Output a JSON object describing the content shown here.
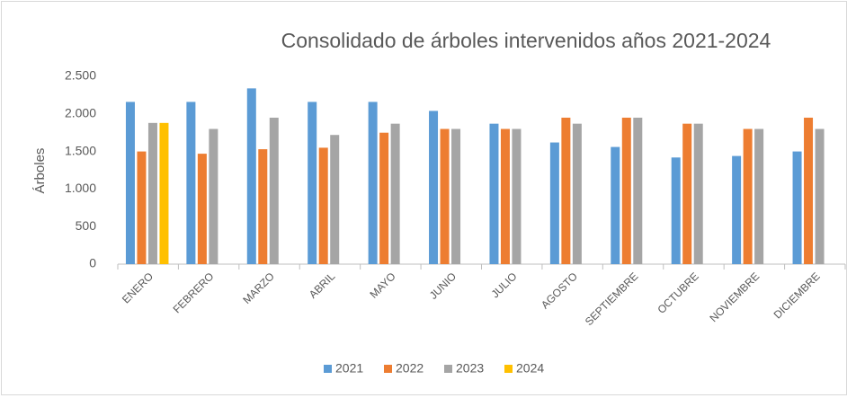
{
  "chart_data": {
    "type": "bar",
    "title": "Consolidado de árboles intervenidos años 2021-2024",
    "y_label": "Árboles",
    "categories": [
      "ENERO",
      "FEBRERO",
      "MARZO",
      "ABRIL",
      "MAYO",
      "JUNIO",
      "JULIO",
      "AGOSTO",
      "SEPTIEMBRE",
      "OCTUBRE",
      "NOVIEMBRE",
      "DICIEMBRE"
    ],
    "series": [
      {
        "name": "2021",
        "color": "#5b9bd5",
        "values": [
          2160,
          2160,
          2340,
          2160,
          2160,
          2040,
          1870,
          1620,
          1560,
          1420,
          1440,
          1500
        ]
      },
      {
        "name": "2022",
        "color": "#ed7d31",
        "values": [
          1500,
          1470,
          1530,
          1550,
          1750,
          1800,
          1800,
          1950,
          1950,
          1870,
          1800,
          1950
        ]
      },
      {
        "name": "2023",
        "color": "#a5a5a5",
        "values": [
          1880,
          1800,
          1950,
          1720,
          1870,
          1800,
          1800,
          1870,
          1950,
          1870,
          1800,
          1800
        ]
      },
      {
        "name": "2024",
        "color": "#ffc000",
        "values": [
          1880,
          null,
          null,
          null,
          null,
          null,
          null,
          null,
          null,
          null,
          null,
          null
        ]
      }
    ],
    "ylim": [
      0,
      2500
    ],
    "yticks": [
      0,
      500,
      {
        "value": 1000,
        "label": "1.000"
      },
      {
        "value": 1500,
        "label": "1.500"
      },
      {
        "value": 2000,
        "label": "2.000"
      },
      {
        "value": 2500,
        "label": "2.500"
      }
    ],
    "grid": false,
    "legend": "bottom"
  }
}
